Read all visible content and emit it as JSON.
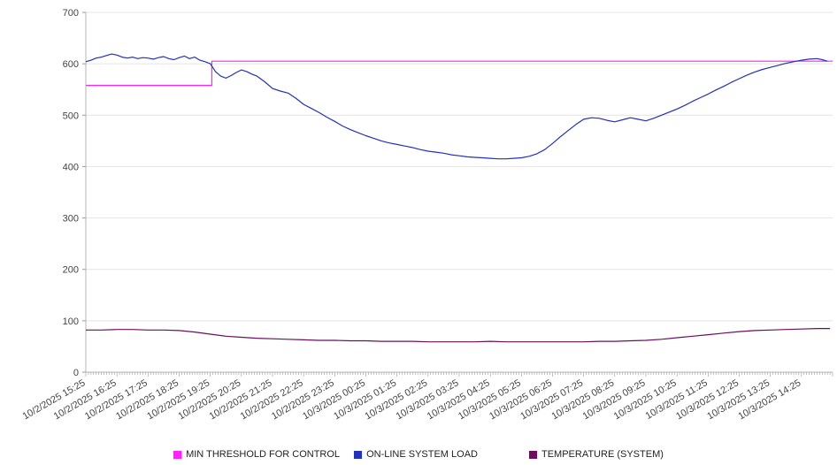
{
  "chart_data": {
    "type": "line",
    "title": "",
    "xlabel": "",
    "ylabel": "",
    "xlim": [
      0,
      1440
    ],
    "ylim": [
      0,
      700
    ],
    "y_ticks": [
      0,
      100,
      200,
      300,
      400,
      500,
      600,
      700
    ],
    "grid": "horizontal",
    "legend_position": "bottom",
    "x_unit": "minutes after 10/2/2025 15:25",
    "x_tick_positions": [
      0,
      60,
      120,
      180,
      240,
      300,
      360,
      420,
      480,
      540,
      600,
      660,
      720,
      780,
      840,
      900,
      960,
      1020,
      1080,
      1140,
      1200,
      1260,
      1320,
      1380
    ],
    "x_tick_labels": [
      "10/2/2025 15:25",
      "10/2/2025 16:25",
      "10/2/2025 17:25",
      "10/2/2025 18:25",
      "10/2/2025 19:25",
      "10/2/2025 20:25",
      "10/2/2025 21:25",
      "10/2/2025 22:25",
      "10/2/2025 23:25",
      "10/3/2025 00:25",
      "10/3/2025 01:25",
      "10/3/2025 02:25",
      "10/3/2025 03:25",
      "10/3/2025 04:25",
      "10/3/2025 05:25",
      "10/3/2025 06:25",
      "10/3/2025 07:25",
      "10/3/2025 08:25",
      "10/3/2025 09:25",
      "10/3/2025 10:25",
      "10/3/2025 11:25",
      "10/3/2025 12:25",
      "10/3/2025 13:25",
      "10/3/2025 14:25"
    ],
    "series": [
      {
        "name": "MIN THRESHOLD FOR CONTROL",
        "color": "#ff22ff",
        "points": [
          [
            0,
            558
          ],
          [
            243,
            558
          ],
          [
            243,
            605
          ],
          [
            1440,
            605
          ]
        ]
      },
      {
        "name": "ON-LINE SYSTEM LOAD",
        "color": "#2230c0",
        "points": [
          [
            0,
            604
          ],
          [
            10,
            607
          ],
          [
            20,
            611
          ],
          [
            30,
            613
          ],
          [
            40,
            616
          ],
          [
            50,
            619
          ],
          [
            60,
            617
          ],
          [
            70,
            613
          ],
          [
            80,
            611
          ],
          [
            90,
            613
          ],
          [
            100,
            610
          ],
          [
            110,
            612
          ],
          [
            120,
            611
          ],
          [
            130,
            609
          ],
          [
            140,
            612
          ],
          [
            150,
            614
          ],
          [
            160,
            610
          ],
          [
            170,
            608
          ],
          [
            180,
            612
          ],
          [
            190,
            615
          ],
          [
            200,
            610
          ],
          [
            210,
            613
          ],
          [
            220,
            607
          ],
          [
            230,
            604
          ],
          [
            240,
            600
          ],
          [
            250,
            585
          ],
          [
            260,
            576
          ],
          [
            270,
            572
          ],
          [
            280,
            577
          ],
          [
            290,
            583
          ],
          [
            300,
            588
          ],
          [
            310,
            585
          ],
          [
            320,
            580
          ],
          [
            330,
            576
          ],
          [
            345,
            565
          ],
          [
            360,
            552
          ],
          [
            375,
            547
          ],
          [
            390,
            543
          ],
          [
            405,
            533
          ],
          [
            420,
            521
          ],
          [
            435,
            513
          ],
          [
            450,
            505
          ],
          [
            465,
            496
          ],
          [
            480,
            488
          ],
          [
            495,
            479
          ],
          [
            510,
            472
          ],
          [
            525,
            466
          ],
          [
            540,
            460
          ],
          [
            555,
            455
          ],
          [
            570,
            450
          ],
          [
            585,
            446
          ],
          [
            600,
            443
          ],
          [
            615,
            440
          ],
          [
            630,
            437
          ],
          [
            645,
            433
          ],
          [
            660,
            430
          ],
          [
            675,
            428
          ],
          [
            690,
            426
          ],
          [
            705,
            423
          ],
          [
            720,
            421
          ],
          [
            735,
            419
          ],
          [
            750,
            418
          ],
          [
            765,
            417
          ],
          [
            780,
            416
          ],
          [
            795,
            415
          ],
          [
            810,
            415
          ],
          [
            825,
            416
          ],
          [
            840,
            417
          ],
          [
            855,
            420
          ],
          [
            870,
            425
          ],
          [
            885,
            433
          ],
          [
            900,
            445
          ],
          [
            915,
            458
          ],
          [
            930,
            470
          ],
          [
            945,
            482
          ],
          [
            960,
            492
          ],
          [
            975,
            495
          ],
          [
            990,
            494
          ],
          [
            1005,
            490
          ],
          [
            1020,
            487
          ],
          [
            1035,
            491
          ],
          [
            1050,
            495
          ],
          [
            1065,
            492
          ],
          [
            1080,
            489
          ],
          [
            1095,
            494
          ],
          [
            1110,
            500
          ],
          [
            1125,
            506
          ],
          [
            1140,
            512
          ],
          [
            1155,
            519
          ],
          [
            1170,
            527
          ],
          [
            1185,
            534
          ],
          [
            1200,
            541
          ],
          [
            1215,
            549
          ],
          [
            1230,
            556
          ],
          [
            1245,
            564
          ],
          [
            1260,
            571
          ],
          [
            1275,
            578
          ],
          [
            1290,
            584
          ],
          [
            1305,
            589
          ],
          [
            1320,
            593
          ],
          [
            1335,
            597
          ],
          [
            1350,
            601
          ],
          [
            1365,
            604
          ],
          [
            1380,
            607
          ],
          [
            1395,
            609
          ],
          [
            1410,
            610
          ],
          [
            1420,
            608
          ],
          [
            1430,
            605
          ]
        ]
      },
      {
        "name": "TEMPERATURE (SYSTEM)",
        "color": "#6b0e5c",
        "points": [
          [
            0,
            82
          ],
          [
            30,
            82
          ],
          [
            60,
            83
          ],
          [
            90,
            83
          ],
          [
            120,
            82
          ],
          [
            150,
            82
          ],
          [
            180,
            81
          ],
          [
            210,
            78
          ],
          [
            240,
            74
          ],
          [
            270,
            70
          ],
          [
            300,
            68
          ],
          [
            330,
            66
          ],
          [
            360,
            65
          ],
          [
            390,
            64
          ],
          [
            420,
            63
          ],
          [
            450,
            62
          ],
          [
            480,
            62
          ],
          [
            510,
            61
          ],
          [
            540,
            61
          ],
          [
            570,
            60
          ],
          [
            600,
            60
          ],
          [
            630,
            60
          ],
          [
            660,
            59
          ],
          [
            690,
            59
          ],
          [
            720,
            59
          ],
          [
            750,
            59
          ],
          [
            780,
            60
          ],
          [
            810,
            59
          ],
          [
            840,
            59
          ],
          [
            870,
            59
          ],
          [
            900,
            59
          ],
          [
            930,
            59
          ],
          [
            960,
            59
          ],
          [
            990,
            60
          ],
          [
            1020,
            60
          ],
          [
            1050,
            61
          ],
          [
            1080,
            62
          ],
          [
            1110,
            64
          ],
          [
            1140,
            67
          ],
          [
            1170,
            70
          ],
          [
            1200,
            73
          ],
          [
            1230,
            76
          ],
          [
            1260,
            79
          ],
          [
            1290,
            81
          ],
          [
            1320,
            82
          ],
          [
            1350,
            83
          ],
          [
            1380,
            84
          ],
          [
            1410,
            85
          ],
          [
            1435,
            85
          ]
        ]
      }
    ]
  },
  "legend": {
    "items": [
      {
        "label": "MIN THRESHOLD FOR CONTROL"
      },
      {
        "label": "ON-LINE SYSTEM LOAD"
      },
      {
        "label": "TEMPERATURE (SYSTEM)"
      }
    ]
  }
}
